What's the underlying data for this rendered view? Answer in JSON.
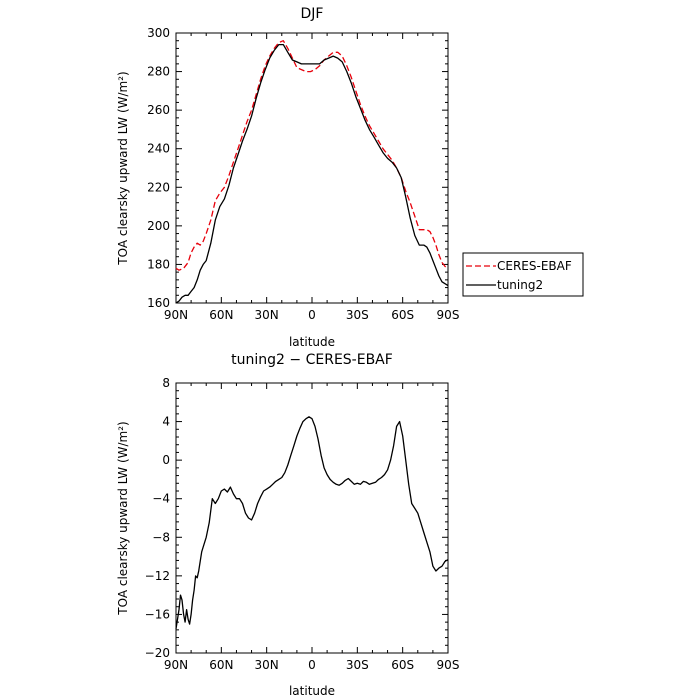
{
  "chart_data": [
    {
      "type": "line",
      "title": "DJF",
      "xlabel": "latitude",
      "ylabel": "TOA clearsky upward LW (W/m²)",
      "xlim": [
        90,
        -90
      ],
      "ylim": [
        160,
        300
      ],
      "x_ticks": [
        90,
        60,
        30,
        0,
        -30,
        -60,
        -90
      ],
      "x_tick_labels": [
        "90N",
        "60N",
        "30N",
        "0",
        "30S",
        "60S",
        "90S"
      ],
      "y_ticks": [
        160,
        180,
        200,
        220,
        240,
        260,
        280,
        300
      ],
      "y_tick_labels": [
        "160",
        "180",
        "200",
        "220",
        "240",
        "260",
        "280",
        "300"
      ],
      "legend_position": "right-outside",
      "grid": false,
      "series": [
        {
          "name": "CERES-EBAF",
          "style": "dashed",
          "color": "#e8000b",
          "x": [
            90,
            88,
            85,
            82,
            80,
            78,
            76,
            74,
            72,
            70,
            67,
            64,
            61,
            58,
            55,
            52,
            49,
            46,
            43,
            40,
            37,
            34,
            31,
            28,
            25,
            22,
            19,
            16,
            13,
            10,
            7,
            4,
            1,
            -2,
            -5,
            -8,
            -11,
            -14,
            -17,
            -20,
            -23,
            -26,
            -29,
            -32,
            -35,
            -38,
            -41,
            -44,
            -47,
            -50,
            -53,
            -56,
            -59,
            -62,
            -65,
            -68,
            -71,
            -74,
            -76,
            -78,
            -80,
            -82,
            -84,
            -86,
            -88,
            -90
          ],
          "y": [
            178,
            177,
            178,
            181,
            186,
            189,
            191,
            190,
            192,
            196,
            203,
            213,
            217,
            220,
            226,
            233,
            240,
            247,
            254,
            260,
            268,
            276,
            283,
            288,
            292,
            295,
            296,
            292,
            287,
            282,
            281,
            280,
            280,
            281,
            283,
            286,
            288,
            290,
            290,
            288,
            283,
            277,
            270,
            263,
            257,
            252,
            248,
            244,
            240,
            237,
            234,
            230,
            225,
            218,
            212,
            205,
            198,
            198,
            198,
            197,
            194,
            190,
            185,
            181,
            179,
            178
          ]
        },
        {
          "name": "tuning2",
          "style": "solid",
          "color": "#000000",
          "x": [
            90,
            88,
            86,
            84,
            82,
            80,
            78,
            76,
            74,
            72,
            70,
            67,
            64,
            61,
            58,
            55,
            52,
            49,
            46,
            43,
            40,
            37,
            34,
            31,
            28,
            25,
            22,
            19,
            16,
            13,
            10,
            7,
            4,
            1,
            -2,
            -5,
            -8,
            -11,
            -14,
            -17,
            -20,
            -23,
            -26,
            -29,
            -32,
            -35,
            -38,
            -41,
            -44,
            -47,
            -50,
            -53,
            -56,
            -59,
            -62,
            -65,
            -68,
            -71,
            -74,
            -76,
            -78,
            -80,
            -82,
            -84,
            -86,
            -88,
            -90
          ],
          "y": [
            160,
            161,
            163,
            164,
            164,
            166,
            168,
            172,
            177,
            180,
            182,
            191,
            203,
            210,
            214,
            221,
            230,
            237,
            244,
            250,
            257,
            266,
            274,
            281,
            287,
            291,
            294,
            294,
            290,
            286,
            285,
            284,
            284,
            284,
            284,
            284,
            286,
            287,
            288,
            287,
            285,
            280,
            274,
            267,
            261,
            255,
            250,
            246,
            242,
            238,
            235,
            233,
            230,
            225,
            215,
            204,
            195,
            190,
            190,
            189,
            186,
            182,
            178,
            174,
            171,
            170,
            169
          ]
        }
      ]
    },
    {
      "type": "line",
      "title": "tuning2 − CERES-EBAF",
      "xlabel": "latitude",
      "ylabel": "TOA clearsky upward LW (W/m²)",
      "xlim": [
        90,
        -90
      ],
      "ylim": [
        -20,
        8
      ],
      "x_ticks": [
        90,
        60,
        30,
        0,
        -30,
        -60,
        -90
      ],
      "x_tick_labels": [
        "90N",
        "60N",
        "30N",
        "0",
        "30S",
        "60S",
        "90S"
      ],
      "y_ticks": [
        -20,
        -16,
        -12,
        -8,
        -4,
        0,
        4,
        8
      ],
      "y_tick_labels": [
        "−20",
        "−16",
        "−12",
        "−8",
        "−4",
        "0",
        "4",
        "8"
      ],
      "grid": false,
      "series": [
        {
          "name": "",
          "style": "solid",
          "color": "#000000",
          "x": [
            90,
            89,
            88,
            87,
            86,
            85,
            84,
            83,
            82,
            81,
            80,
            79,
            78,
            77,
            76,
            75,
            74,
            73,
            72,
            70,
            68,
            66,
            64,
            62,
            60,
            58,
            56,
            54,
            52,
            50,
            48,
            46,
            44,
            42,
            40,
            38,
            36,
            34,
            32,
            30,
            28,
            26,
            24,
            22,
            20,
            18,
            16,
            14,
            12,
            10,
            8,
            6,
            4,
            2,
            0,
            -2,
            -4,
            -6,
            -8,
            -10,
            -12,
            -14,
            -16,
            -18,
            -20,
            -22,
            -24,
            -26,
            -28,
            -30,
            -32,
            -34,
            -36,
            -38,
            -40,
            -42,
            -44,
            -46,
            -48,
            -50,
            -52,
            -54,
            -56,
            -58,
            -60,
            -62,
            -64,
            -66,
            -68,
            -70,
            -72,
            -74,
            -76,
            -78,
            -80,
            -82,
            -84,
            -86,
            -88,
            -90
          ],
          "y": [
            -17.5,
            -16.5,
            -15.5,
            -14,
            -14.5,
            -16,
            -16.8,
            -15.5,
            -16.5,
            -17,
            -16,
            -14.5,
            -13.5,
            -12,
            -12.2,
            -11.5,
            -10.5,
            -9.5,
            -9,
            -8,
            -6.5,
            -4,
            -4.5,
            -4,
            -3.2,
            -3,
            -3.3,
            -2.8,
            -3.5,
            -4,
            -4,
            -4.5,
            -5.5,
            -6,
            -6.2,
            -5.5,
            -4.5,
            -3.8,
            -3.2,
            -3,
            -2.8,
            -2.5,
            -2.2,
            -2,
            -1.8,
            -1.3,
            -0.5,
            0.5,
            1.5,
            2.5,
            3.3,
            4,
            4.3,
            4.5,
            4.3,
            3.5,
            2.2,
            0.5,
            -0.8,
            -1.5,
            -2,
            -2.3,
            -2.5,
            -2.6,
            -2.4,
            -2.1,
            -1.9,
            -2.2,
            -2.5,
            -2.4,
            -2.5,
            -2.2,
            -2.3,
            -2.5,
            -2.4,
            -2.3,
            -2.0,
            -1.8,
            -1.5,
            -1,
            0,
            1.5,
            3.5,
            4,
            2.5,
            0,
            -2.5,
            -4.5,
            -5,
            -5.5,
            -6.5,
            -7.5,
            -8.5,
            -9.5,
            -11,
            -11.5,
            -11.2,
            -11,
            -10.5,
            -10.3
          ]
        }
      ]
    }
  ]
}
